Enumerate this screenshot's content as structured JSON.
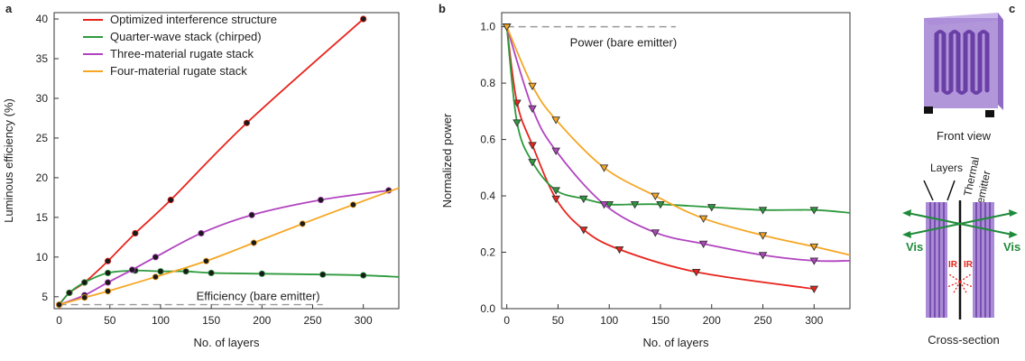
{
  "panels": {
    "a": {
      "letter": "a"
    },
    "b": {
      "letter": "b"
    },
    "c": {
      "letter": "c",
      "front_view": "Front view",
      "layers": "Layers",
      "thermal": "Thermal",
      "emitter": "emitter",
      "vis_left": "Vis",
      "vis_right": "Vis",
      "ir_left": "IR",
      "ir_right": "IR",
      "cross_section": "Cross-section",
      "colors": {
        "structure": "#a98bd6",
        "stripes": "#7b4fb0",
        "vis_arrow": "#1f8a3a",
        "ir_arrow": "#e8241c"
      }
    }
  },
  "chart_data": [
    {
      "type": "line",
      "panel": "a",
      "xlabel": "No. of layers",
      "ylabel": "Luminous efficiency (%)",
      "xlim": [
        -5,
        335
      ],
      "ylim": [
        3.5,
        40.8
      ],
      "xticks": [
        0,
        50,
        100,
        150,
        200,
        250,
        300
      ],
      "yticks": [
        5,
        10,
        15,
        20,
        25,
        30,
        35,
        40
      ],
      "grid": false,
      "legend": "top-left",
      "reference": {
        "label": "Efficiency (bare emitter)",
        "y": 4,
        "x": [
          0,
          260
        ]
      },
      "series": [
        {
          "name": "Optimized interference structure",
          "color": "#e8241c",
          "x": [
            0,
            10,
            25,
            48,
            75,
            110,
            185,
            300
          ],
          "y": [
            4.0,
            5.5,
            6.8,
            9.5,
            13.0,
            17.2,
            26.9,
            40.0
          ]
        },
        {
          "name": "Quarter-wave stack (chirped)",
          "color": "#2e9a3e",
          "x": [
            0,
            10,
            25,
            48,
            75,
            100,
            125,
            150,
            200,
            260,
            300,
            335
          ],
          "y": [
            4.0,
            5.5,
            6.8,
            8.0,
            8.3,
            8.2,
            8.2,
            8.0,
            7.9,
            7.8,
            7.7,
            7.5
          ]
        },
        {
          "name": "Three-material rugate stack",
          "color": "#b144c0",
          "x": [
            0,
            25,
            48,
            72,
            95,
            140,
            190,
            258,
            325
          ],
          "y": [
            4.0,
            5.2,
            6.8,
            8.4,
            10.0,
            13.0,
            15.3,
            17.2,
            18.4
          ]
        },
        {
          "name": "Four-material rugate stack",
          "color": "#f5a623",
          "x": [
            0,
            25,
            48,
            95,
            145,
            192,
            240,
            290,
            335
          ],
          "y": [
            4.0,
            4.9,
            5.7,
            7.5,
            9.5,
            11.8,
            14.2,
            16.6,
            18.7
          ]
        }
      ]
    },
    {
      "type": "line",
      "panel": "b",
      "xlabel": "No. of layers",
      "ylabel": "Normalized power",
      "xlim": [
        -5,
        335
      ],
      "ylim": [
        0,
        1.05
      ],
      "xticks": [
        0,
        50,
        100,
        150,
        200,
        250,
        300
      ],
      "yticks": [
        0.0,
        0.2,
        0.4,
        0.6,
        0.8,
        1.0
      ],
      "grid": false,
      "reference": {
        "label": "Power (bare emitter)",
        "y": 1.0,
        "x": [
          0,
          165
        ]
      },
      "series": [
        {
          "color": "#e8241c",
          "x": [
            0,
            10,
            25,
            48,
            75,
            110,
            185,
            300
          ],
          "y": [
            1.0,
            0.73,
            0.58,
            0.39,
            0.28,
            0.21,
            0.13,
            0.07
          ]
        },
        {
          "color": "#2e9a3e",
          "x": [
            0,
            10,
            25,
            48,
            75,
            100,
            125,
            150,
            200,
            250,
            300,
            335
          ],
          "y": [
            1.0,
            0.66,
            0.52,
            0.42,
            0.39,
            0.37,
            0.37,
            0.37,
            0.36,
            0.35,
            0.35,
            0.34
          ]
        },
        {
          "color": "#b144c0",
          "x": [
            0,
            25,
            48,
            95,
            145,
            192,
            250,
            300,
            335
          ],
          "y": [
            1.0,
            0.71,
            0.56,
            0.37,
            0.27,
            0.23,
            0.19,
            0.17,
            0.17
          ]
        },
        {
          "color": "#f5a623",
          "x": [
            0,
            25,
            48,
            95,
            145,
            192,
            250,
            300,
            335
          ],
          "y": [
            1.0,
            0.79,
            0.67,
            0.5,
            0.4,
            0.32,
            0.26,
            0.22,
            0.19
          ]
        }
      ]
    }
  ]
}
